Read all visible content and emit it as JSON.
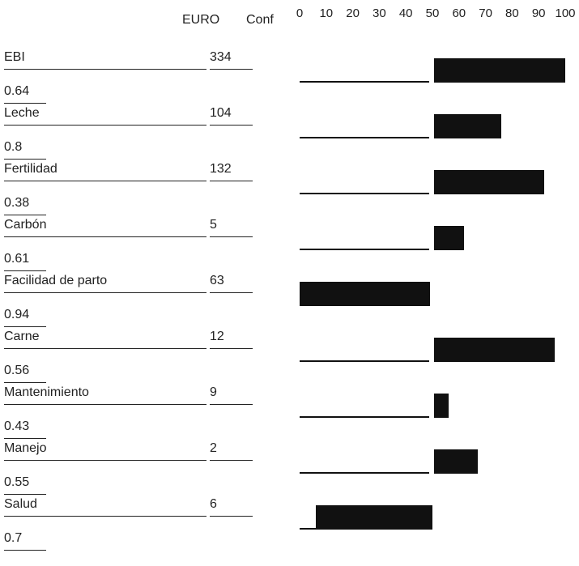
{
  "chart_data": {
    "type": "bar",
    "headers": {
      "value_col": "EURO",
      "conf_col": "Conf"
    },
    "axis_ticks": [
      "0",
      "10",
      "20",
      "30",
      "40",
      "50",
      "60",
      "70",
      "80",
      "90",
      "100"
    ],
    "xlim": [
      0,
      100
    ],
    "baseline": 50,
    "rows": [
      {
        "label": "EBI",
        "euro": "334",
        "conf": "0.64",
        "bar_from": 50,
        "bar_to": 100
      },
      {
        "label": "Leche",
        "euro": "104",
        "conf": "0.8",
        "bar_from": 50,
        "bar_to": 76
      },
      {
        "label": "Fertilidad",
        "euro": "132",
        "conf": "0.38",
        "bar_from": 50,
        "bar_to": 92
      },
      {
        "label": "Carbón",
        "euro": "5",
        "conf": "0.61",
        "bar_from": 50,
        "bar_to": 62
      },
      {
        "label": "Facilidad de parto",
        "euro": "63",
        "conf": "0.94",
        "bar_from": -8,
        "bar_to": 49
      },
      {
        "label": "Carne",
        "euro": "12",
        "conf": "0.56",
        "bar_from": 50,
        "bar_to": 96
      },
      {
        "label": "Mantenimiento",
        "euro": "9",
        "conf": "0.43",
        "bar_from": 50,
        "bar_to": 56
      },
      {
        "label": "Manejo",
        "euro": "2",
        "conf": "0.55",
        "bar_from": 50,
        "bar_to": 67
      },
      {
        "label": "Salud",
        "euro": "6",
        "conf": "0.7",
        "bar_from": 6,
        "bar_to": 50
      }
    ]
  }
}
